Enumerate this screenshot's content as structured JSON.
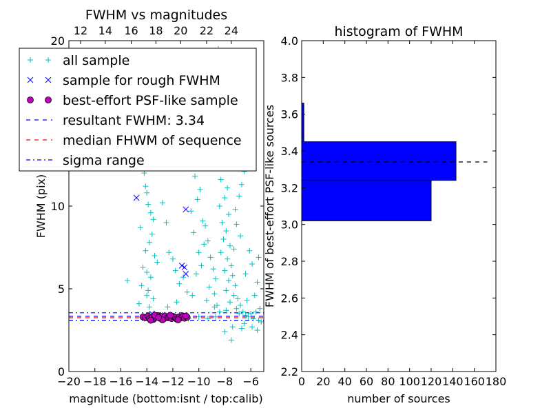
{
  "chart_data": [
    {
      "type": "scatter",
      "title": "FWHM vs magnitudes",
      "xlabel": "magnitude (bottom:isnt / top:calib)",
      "ylabel": "FWHM (pix)",
      "xlim": [
        -20,
        -5
      ],
      "ylim": [
        0,
        20
      ],
      "x_ticks": [
        -20,
        -18,
        -16,
        -14,
        -12,
        -10,
        -8,
        -6
      ],
      "x_tick_labels": [
        "−20",
        "−18",
        "−16",
        "−14",
        "−12",
        "−10",
        "−8",
        "−6"
      ],
      "y_ticks": [
        0,
        5,
        10,
        20
      ],
      "y_tick_labels": [
        "0",
        "5",
        "10",
        "20"
      ],
      "top_xlabel_ticks": [
        {
          "x": -19.1,
          "label": "12"
        },
        {
          "x": -17.2,
          "label": "14"
        },
        {
          "x": -15.2,
          "label": "16"
        },
        {
          "x": -13.3,
          "label": "18"
        },
        {
          "x": -11.4,
          "label": "20"
        },
        {
          "x": -9.4,
          "label": "22"
        },
        {
          "x": -7.5,
          "label": "24"
        }
      ],
      "legend": {
        "placement": "upper-left",
        "entries": [
          {
            "label": "all sample",
            "marker": "plus",
            "color": "#00bfbf",
            "style": "marker"
          },
          {
            "label": "sample for rough FWHM",
            "marker": "x",
            "color": "#0000ff",
            "style": "marker"
          },
          {
            "label": "best-effort PSF-like sample",
            "marker": "circle",
            "color": "#bf00bf",
            "style": "marker"
          },
          {
            "label": "resultant FWHM: 3.34",
            "color": "#0000ff",
            "style": "dashed"
          },
          {
            "label": "median FHWM of sequence",
            "color": "#ff0000",
            "style": "dashed"
          },
          {
            "label": "sigma range",
            "color": "#0000ff",
            "style": "dashdot"
          }
        ]
      },
      "series": [
        {
          "name": "all sample",
          "marker": "plus",
          "color": "#00bfbf",
          "points": [
            [
              -14.2,
              12.0
            ],
            [
              -14.1,
              11.2
            ],
            [
              -14.0,
              10.8
            ],
            [
              -13.9,
              10.1
            ],
            [
              -13.7,
              9.6
            ],
            [
              -13.5,
              9.2
            ],
            [
              -14.5,
              8.7
            ],
            [
              -13.6,
              8.3
            ],
            [
              -13.8,
              7.8
            ],
            [
              -14.1,
              7.3
            ],
            [
              -13.4,
              7.0
            ],
            [
              -13.2,
              6.6
            ],
            [
              -14.3,
              6.3
            ],
            [
              -14.0,
              6.0
            ],
            [
              -13.7,
              5.7
            ],
            [
              -15.5,
              5.5
            ],
            [
              -14.4,
              5.2
            ],
            [
              -13.9,
              4.9
            ],
            [
              -14.0,
              4.6
            ],
            [
              -13.5,
              4.4
            ],
            [
              -14.6,
              4.1
            ],
            [
              -13.8,
              3.9
            ],
            [
              -12.8,
              10.2
            ],
            [
              -12.5,
              9.0
            ],
            [
              -12.3,
              7.2
            ],
            [
              -12.0,
              6.8
            ],
            [
              -11.8,
              6.1
            ],
            [
              -11.5,
              5.3
            ],
            [
              -11.2,
              5.7
            ],
            [
              -10.9,
              4.8
            ],
            [
              -11.7,
              4.2
            ],
            [
              -12.4,
              3.9
            ],
            [
              -10.5,
              4.6
            ],
            [
              -10.2,
              5.9
            ],
            [
              -9.8,
              6.4
            ],
            [
              -10.7,
              12.5
            ],
            [
              -10.3,
              11.8
            ],
            [
              -9.9,
              11.0
            ],
            [
              -10.1,
              10.4
            ],
            [
              -10.6,
              9.7
            ],
            [
              -9.7,
              9.1
            ],
            [
              -10.4,
              8.4
            ],
            [
              -9.6,
              7.7
            ],
            [
              -10.0,
              7.2
            ],
            [
              -9.5,
              8.8
            ],
            [
              -9.3,
              7.9
            ],
            [
              -9.1,
              6.9
            ],
            [
              -8.9,
              6.2
            ],
            [
              -8.7,
              5.6
            ],
            [
              -9.2,
              5.1
            ],
            [
              -8.8,
              4.7
            ],
            [
              -9.4,
              4.3
            ],
            [
              -8.6,
              4.0
            ],
            [
              -8.5,
              19.5
            ],
            [
              -8.3,
              17.8
            ],
            [
              -8.4,
              16.3
            ],
            [
              -8.2,
              15.1
            ],
            [
              -8.0,
              14.4
            ],
            [
              -8.1,
              13.7
            ],
            [
              -7.9,
              12.9
            ],
            [
              -8.6,
              12.3
            ],
            [
              -8.3,
              11.6
            ],
            [
              -7.8,
              11.1
            ],
            [
              -8.0,
              10.5
            ],
            [
              -8.4,
              10.0
            ],
            [
              -7.7,
              9.5
            ],
            [
              -8.2,
              9.0
            ],
            [
              -7.9,
              8.5
            ],
            [
              -8.1,
              8.0
            ],
            [
              -7.6,
              7.6
            ],
            [
              -8.3,
              7.2
            ],
            [
              -7.8,
              6.8
            ],
            [
              -7.5,
              6.4
            ],
            [
              -8.0,
              6.1
            ],
            [
              -7.4,
              5.8
            ],
            [
              -7.7,
              5.5
            ],
            [
              -7.2,
              5.2
            ],
            [
              -7.9,
              4.9
            ],
            [
              -7.3,
              4.6
            ],
            [
              -7.0,
              4.4
            ],
            [
              -7.6,
              4.2
            ],
            [
              -6.8,
              4.0
            ],
            [
              -7.1,
              3.8
            ],
            [
              -6.6,
              3.6
            ],
            [
              -6.9,
              3.5
            ],
            [
              -6.4,
              3.4
            ],
            [
              -6.2,
              3.3
            ],
            [
              -6.0,
              3.5
            ],
            [
              -5.8,
              3.2
            ],
            [
              -5.6,
              3.6
            ],
            [
              -5.4,
              3.1
            ],
            [
              -5.3,
              3.8
            ],
            [
              -5.2,
              3.0
            ],
            [
              -6.5,
              2.9
            ],
            [
              -7.4,
              2.7
            ],
            [
              -8.0,
              2.4
            ],
            [
              -6.7,
              2.6
            ],
            [
              -5.9,
              2.7
            ],
            [
              -5.5,
              2.5
            ],
            [
              -7.5,
              1.9
            ],
            [
              -8.7,
              3.3
            ],
            [
              -9.3,
              3.2
            ],
            [
              -10.0,
              3.3
            ],
            [
              -10.8,
              3.2
            ],
            [
              -11.6,
              3.3
            ],
            [
              -12.4,
              3.2
            ],
            [
              -13.2,
              3.3
            ],
            [
              -14.2,
              3.2
            ],
            [
              -8.4,
              3.6
            ],
            [
              -7.9,
              3.7
            ],
            [
              -8.8,
              3.9
            ],
            [
              -6.3,
              4.3
            ],
            [
              -5.7,
              4.6
            ],
            [
              -5.5,
              5.4
            ],
            [
              -5.9,
              6.5
            ],
            [
              -6.1,
              7.3
            ],
            [
              -6.4,
              5.9
            ],
            [
              -5.4,
              6.9
            ],
            [
              -6.7,
              11.3
            ],
            [
              -6.9,
              10.6
            ],
            [
              -7.2,
              9.8
            ],
            [
              -7.1,
              8.9
            ],
            [
              -6.8,
              8.2
            ],
            [
              -7.3,
              7.4
            ],
            [
              -6.5,
              12.1
            ],
            [
              -9.0,
              19.3
            ],
            [
              -8.8,
              17.1
            ],
            [
              -8.6,
              15.8
            ],
            [
              -7.3,
              14.6
            ],
            [
              -7.5,
              13.4
            ],
            [
              -7.0,
              12.7
            ]
          ]
        },
        {
          "name": "sample for rough FWHM",
          "marker": "x",
          "color": "#0000ff",
          "points": [
            [
              -14.8,
              10.5
            ],
            [
              -11.0,
              9.8
            ],
            [
              -11.3,
              6.4
            ],
            [
              -11.1,
              6.3
            ],
            [
              -11.0,
              5.9
            ],
            [
              -13.6,
              3.5
            ],
            [
              -13.0,
              3.4
            ],
            [
              -12.5,
              3.3
            ]
          ]
        },
        {
          "name": "best-effort PSF-like sample",
          "marker": "circle",
          "color": "#bf00bf",
          "points": [
            [
              -14.3,
              3.3
            ],
            [
              -14.1,
              3.25
            ],
            [
              -13.9,
              3.35
            ],
            [
              -13.8,
              3.2
            ],
            [
              -13.6,
              3.3
            ],
            [
              -13.5,
              3.15
            ],
            [
              -13.3,
              3.28
            ],
            [
              -13.2,
              3.38
            ],
            [
              -13.0,
              3.22
            ],
            [
              -12.9,
              3.32
            ],
            [
              -12.7,
              3.18
            ],
            [
              -12.6,
              3.36
            ],
            [
              -12.4,
              3.25
            ],
            [
              -12.3,
              3.3
            ],
            [
              -12.1,
              3.2
            ],
            [
              -12.0,
              3.34
            ],
            [
              -11.8,
              3.27
            ],
            [
              -11.7,
              3.17
            ],
            [
              -11.5,
              3.31
            ],
            [
              -11.4,
              3.24
            ],
            [
              -11.2,
              3.35
            ],
            [
              -11.1,
              3.22
            ],
            [
              -10.9,
              3.28
            ],
            [
              -13.7,
              3.1
            ],
            [
              -13.4,
              3.4
            ],
            [
              -12.8,
              3.12
            ],
            [
              -12.2,
              3.4
            ],
            [
              -11.6,
              3.12
            ],
            [
              -11.0,
              3.36
            ],
            [
              -13.1,
              3.26
            ]
          ]
        }
      ],
      "hlines": [
        {
          "name": "resultant FWHM: 3.34",
          "y": 3.34,
          "color": "#0000ff",
          "style": "dashed"
        },
        {
          "name": "median FHWM of sequence",
          "y": 3.25,
          "color": "#ff0000",
          "style": "dashed"
        },
        {
          "name": "sigma range",
          "y": 3.55,
          "color": "#0000ff",
          "style": "dashdot"
        },
        {
          "name": "sigma range",
          "y": 3.1,
          "color": "#0000ff",
          "style": "dashdot"
        }
      ]
    },
    {
      "type": "bar",
      "orientation": "horizontal",
      "title": "histogram of FWHM",
      "xlabel": "number of sources",
      "ylabel": "FWHM of best-effort PSF-like sources",
      "xlim": [
        0,
        180
      ],
      "ylim": [
        2.2,
        4.0
      ],
      "x_ticks": [
        0,
        20,
        40,
        60,
        80,
        100,
        120,
        140,
        160,
        180
      ],
      "y_ticks": [
        2.2,
        2.4,
        2.6,
        2.8,
        3.0,
        3.2,
        3.4,
        3.6,
        3.8,
        4.0
      ],
      "y_tick_labels": [
        "2.2",
        "2.4",
        "2.6",
        "2.8",
        "3.0",
        "3.2",
        "3.4",
        "3.6",
        "3.8",
        "4.0"
      ],
      "bars": [
        {
          "y0": 3.02,
          "y1": 3.24,
          "count": 120
        },
        {
          "y0": 3.24,
          "y1": 3.45,
          "count": 143
        },
        {
          "y0": 3.45,
          "y1": 3.66,
          "count": 2
        },
        {
          "y0": 3.66,
          "y1": 3.87,
          "count": 0
        }
      ],
      "bar_color": "#0000ff",
      "hlines": [
        {
          "y": 3.34,
          "color": "#000000",
          "style": "dashed",
          "x_end": 172
        }
      ]
    }
  ]
}
